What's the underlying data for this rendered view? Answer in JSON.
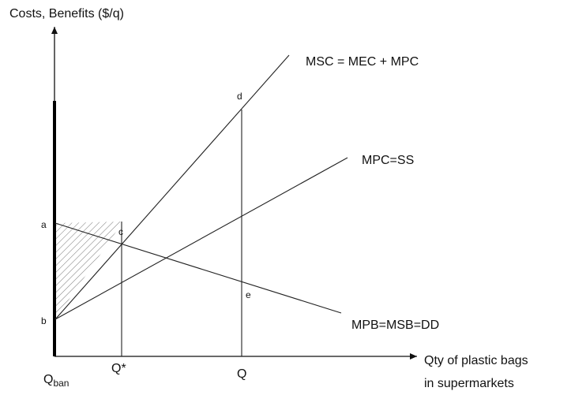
{
  "axes": {
    "y_label": "Costs, Benefits ($/q)",
    "x_label_line1": "Qty of plastic bags",
    "x_label_line2": "in supermarkets"
  },
  "curves": {
    "msc": "MSC = MEC + MPC",
    "mpc": "MPC=SS",
    "mpb": "MPB=MSB=DD"
  },
  "points": {
    "a": "a",
    "b": "b",
    "c": "c",
    "d": "d",
    "e": "e"
  },
  "quantities": {
    "q_ban_main": "Q",
    "q_ban_sub": "ban",
    "q_star": "Q*",
    "q": "Q"
  }
}
